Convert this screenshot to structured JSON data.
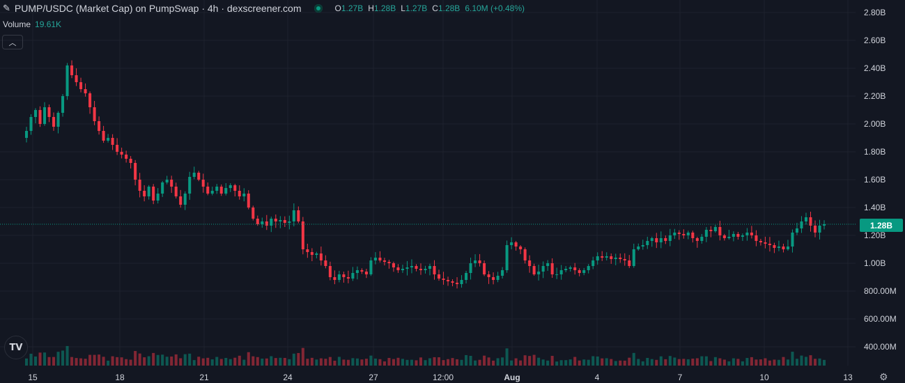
{
  "legend": {
    "title": "PUMP/USDC (Market Cap) on PumpSwap · 4h · dexscreener.com",
    "icon": "pencil-icon",
    "o_key": "O",
    "o_val": "1.27B",
    "h_key": "H",
    "h_val": "1.28B",
    "l_key": "L",
    "l_val": "1.27B",
    "c_key": "C",
    "c_val": "1.28B",
    "change": "6.10M (+0.48%)"
  },
  "volume": {
    "label": "Volume",
    "value": "19.61K"
  },
  "collapse_icon": "chevron-up-icon",
  "logo_text": "TV",
  "current_price_label": "1.28B",
  "settings_icon": "gear-icon",
  "colors": {
    "up": "#089981",
    "down": "#f23645",
    "background": "#131722",
    "grid": "#1e222d"
  },
  "chart_data": {
    "type": "candlestick",
    "y_axis_ticks": [
      "2.80B",
      "2.60B",
      "2.40B",
      "2.20B",
      "2.00B",
      "1.80B",
      "1.60B",
      "1.40B",
      "1.20B",
      "1.00B",
      "800.00M",
      "600.00M",
      "400.00M"
    ],
    "y_axis_values": [
      2.8,
      2.6,
      2.4,
      2.2,
      2.0,
      1.8,
      1.6,
      1.4,
      1.2,
      1.0,
      0.8,
      0.6,
      0.4
    ],
    "x_axis_ticks": [
      {
        "label": "15",
        "bold": false
      },
      {
        "label": "18",
        "bold": false
      },
      {
        "label": "21",
        "bold": false
      },
      {
        "label": "24",
        "bold": false
      },
      {
        "label": "27",
        "bold": false
      },
      {
        "label": "12:00",
        "bold": false
      },
      {
        "label": "Aug",
        "bold": true
      },
      {
        "label": "4",
        "bold": false
      },
      {
        "label": "7",
        "bold": false
      },
      {
        "label": "10",
        "bold": false
      },
      {
        "label": "13",
        "bold": false
      }
    ],
    "current_price": 1.28,
    "closes": [
      1.95,
      2.05,
      2.1,
      2.0,
      2.12,
      2.05,
      1.98,
      2.08,
      2.2,
      2.42,
      2.35,
      2.3,
      2.25,
      2.22,
      2.12,
      2.02,
      1.95,
      1.88,
      1.9,
      1.85,
      1.8,
      1.78,
      1.75,
      1.72,
      1.6,
      1.52,
      1.48,
      1.55,
      1.45,
      1.5,
      1.58,
      1.6,
      1.55,
      1.48,
      1.42,
      1.5,
      1.62,
      1.65,
      1.6,
      1.55,
      1.5,
      1.52,
      1.55,
      1.5,
      1.54,
      1.56,
      1.52,
      1.48,
      1.5,
      1.4,
      1.32,
      1.28,
      1.3,
      1.27,
      1.32,
      1.3,
      1.31,
      1.29,
      1.3,
      1.38,
      1.3,
      1.1,
      1.08,
      1.06,
      1.07,
      1.02,
      0.98,
      0.9,
      0.88,
      0.92,
      0.9,
      0.89,
      0.93,
      0.95,
      0.94,
      0.92,
      1.02,
      1.04,
      1.02,
      1.01,
      1.0,
      0.97,
      0.95,
      0.96,
      0.97,
      0.98,
      0.96,
      0.95,
      0.96,
      0.98,
      0.92,
      0.89,
      0.88,
      0.87,
      0.86,
      0.85,
      0.88,
      0.93,
      1.0,
      1.02,
      1.0,
      0.92,
      0.9,
      0.88,
      0.91,
      0.95,
      1.13,
      1.15,
      1.12,
      1.1,
      1.02,
      0.98,
      0.92,
      0.94,
      0.98,
      1.0,
      0.92,
      0.92,
      0.95,
      0.96,
      0.97,
      0.95,
      0.93,
      0.95,
      0.98,
      1.02,
      1.05,
      1.04,
      1.05,
      1.03,
      1.04,
      1.03,
      1.02,
      0.98,
      1.1,
      1.12,
      1.13,
      1.16,
      1.18,
      1.15,
      1.18,
      1.16,
      1.2,
      1.22,
      1.21,
      1.2,
      1.22,
      1.18,
      1.16,
      1.19,
      1.24,
      1.23,
      1.26,
      1.2,
      1.18,
      1.19,
      1.21,
      1.19,
      1.2,
      1.22,
      1.2,
      1.16,
      1.15,
      1.14,
      1.13,
      1.11,
      1.12,
      1.1,
      1.12,
      1.22,
      1.25,
      1.3,
      1.33,
      1.27,
      1.22,
      1.27,
      1.28
    ]
  }
}
